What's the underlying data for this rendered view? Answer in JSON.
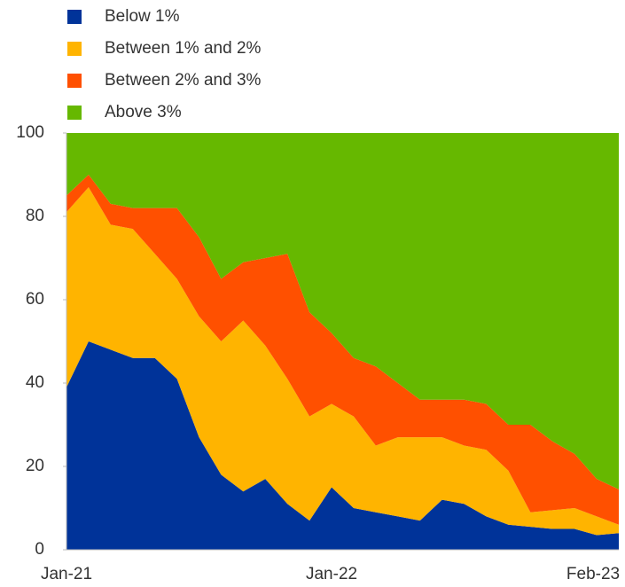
{
  "chart_data": {
    "type": "stacked_area",
    "categories": [
      "Jan-21",
      null,
      null,
      null,
      null,
      null,
      null,
      null,
      null,
      null,
      null,
      null,
      "Jan-22",
      null,
      null,
      null,
      null,
      null,
      null,
      null,
      null,
      null,
      null,
      null,
      null,
      "Feb-23"
    ],
    "series": [
      {
        "name": "Below 1%",
        "color": "#003399",
        "values": [
          39,
          50,
          48,
          46,
          46,
          41,
          27,
          18,
          14,
          17,
          11,
          7,
          15,
          10,
          9,
          8,
          7,
          12,
          11,
          8,
          6,
          5.5,
          5,
          5,
          3.5,
          4
        ]
      },
      {
        "name": "Between 1% and 2%",
        "color": "#ffb400",
        "values": [
          42,
          37,
          30,
          31,
          25,
          24,
          29,
          32,
          41,
          32,
          30,
          25,
          20,
          22,
          16,
          19,
          20,
          15,
          14,
          16,
          13,
          3.5,
          4.5,
          5,
          4.5,
          2
        ]
      },
      {
        "name": "Between 2% and 3%",
        "color": "#ff5000",
        "values": [
          4,
          3,
          5,
          5,
          11,
          17,
          19,
          15,
          14,
          21,
          30,
          25,
          17,
          14,
          19,
          13,
          9,
          9,
          11,
          11,
          11,
          21,
          16.5,
          13,
          9,
          8.5
        ]
      },
      {
        "name": "Above 3%",
        "color": "#66b800",
        "values": [
          15,
          10,
          17,
          18,
          18,
          18,
          25,
          35,
          31,
          30,
          29,
          43,
          48,
          54,
          56,
          60,
          64,
          64,
          64,
          65,
          70,
          70,
          74,
          77,
          83,
          85.5
        ]
      }
    ],
    "ylim": [
      0,
      100
    ],
    "yticks": [
      0,
      20,
      40,
      60,
      80,
      100
    ],
    "grid": false,
    "legend": "top-left"
  }
}
